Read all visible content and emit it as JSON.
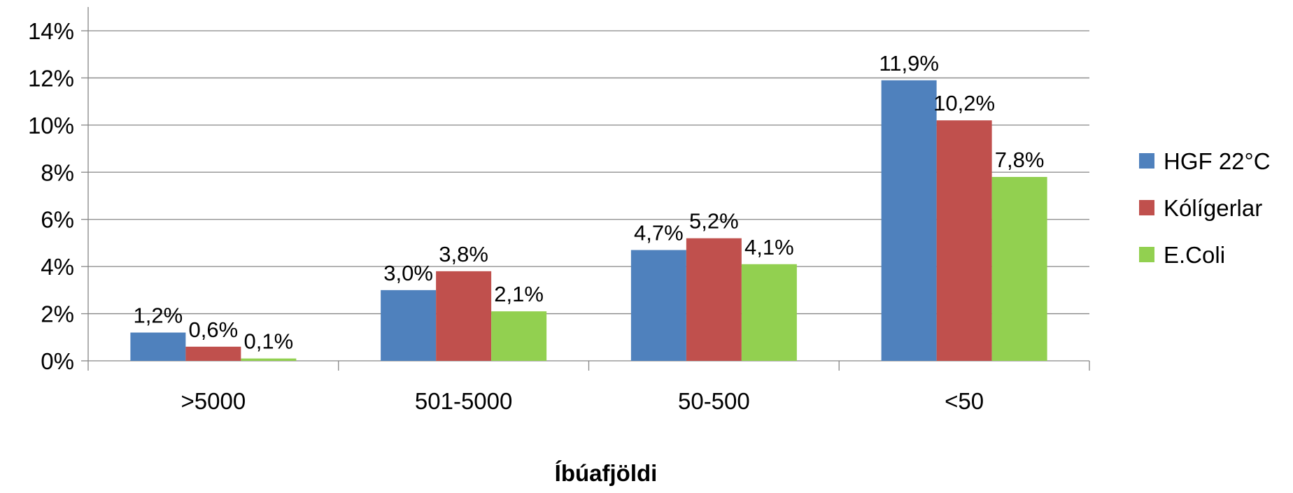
{
  "chart_data": {
    "type": "bar",
    "title": "",
    "xlabel": "Íbúafjöldi",
    "ylabel": "",
    "categories": [
      ">5000",
      "501-5000",
      "50-500",
      "<50"
    ],
    "series": [
      {
        "name": "HGF 22°C",
        "values": [
          1.2,
          3.0,
          4.7,
          11.9
        ],
        "labels": [
          "1,2%",
          "3,0%",
          "4,7%",
          "11,9%"
        ],
        "color": "#4F81BD"
      },
      {
        "name": "Kólígerlar",
        "values": [
          0.6,
          3.8,
          5.2,
          10.2
        ],
        "labels": [
          "0,6%",
          "3,8%",
          "5,2%",
          "10,2%"
        ],
        "color": "#C0504D"
      },
      {
        "name": "E.Coli",
        "values": [
          0.1,
          2.1,
          4.1,
          7.8
        ],
        "labels": [
          "0,1%",
          "2,1%",
          "4,1%",
          "7,8%"
        ],
        "color": "#92D050"
      }
    ],
    "ylim": [
      0,
      14
    ],
    "yticks": [
      0,
      2,
      4,
      6,
      8,
      10,
      12,
      14
    ],
    "ytick_labels": [
      "0%",
      "2%",
      "4%",
      "6%",
      "8%",
      "10%",
      "12%",
      "14%"
    ],
    "grid": true,
    "legend_position": "right",
    "colors": {
      "grid": "#868686",
      "axis": "#868686"
    }
  }
}
